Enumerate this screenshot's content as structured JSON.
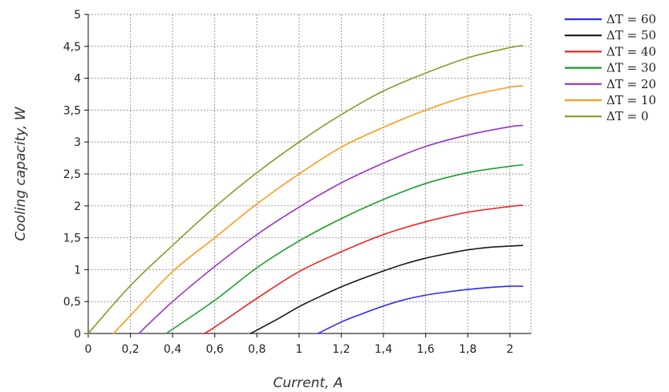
{
  "chart_data": {
    "type": "line",
    "xlabel": "Current, A",
    "ylabel": "Cooling capacity, W",
    "xlim": [
      0,
      2.1
    ],
    "ylim": [
      0,
      5
    ],
    "grid": true,
    "legend_position": "right",
    "x_ticks": [
      "0",
      "0,2",
      "0,4",
      "0,6",
      "0,8",
      "1",
      "1,2",
      "1,4",
      "1,6",
      "1,8",
      "2"
    ],
    "y_ticks": [
      "0",
      "0,5",
      "1",
      "1,5",
      "2",
      "2,5",
      "3",
      "3,5",
      "4",
      "4,5",
      "5"
    ],
    "series": [
      {
        "name": "ΔT = 60",
        "color": "#2b2bff",
        "x": [
          1.09,
          1.2,
          1.3,
          1.4,
          1.5,
          1.6,
          1.7,
          1.8,
          1.9,
          2.0,
          2.06
        ],
        "y": [
          0.0,
          0.18,
          0.31,
          0.43,
          0.53,
          0.6,
          0.65,
          0.69,
          0.72,
          0.74,
          0.74
        ]
      },
      {
        "name": "ΔT = 50",
        "color": "#1a1a1a",
        "x": [
          0.77,
          0.9,
          1.0,
          1.1,
          1.2,
          1.3,
          1.4,
          1.5,
          1.6,
          1.7,
          1.8,
          1.9,
          2.0,
          2.06
        ],
        "y": [
          0.0,
          0.23,
          0.42,
          0.58,
          0.73,
          0.86,
          0.98,
          1.09,
          1.18,
          1.25,
          1.31,
          1.35,
          1.37,
          1.38
        ]
      },
      {
        "name": "ΔT = 40",
        "color": "#ee2222",
        "x": [
          0.55,
          0.6,
          0.8,
          1.0,
          1.2,
          1.4,
          1.6,
          1.8,
          2.0,
          2.06
        ],
        "y": [
          0.0,
          0.1,
          0.55,
          0.97,
          1.28,
          1.55,
          1.75,
          1.9,
          1.99,
          2.01
        ]
      },
      {
        "name": "ΔT = 30",
        "color": "#1e9e2e",
        "x": [
          0.37,
          0.6,
          0.8,
          1.0,
          1.2,
          1.4,
          1.6,
          1.8,
          2.0,
          2.06
        ],
        "y": [
          0.0,
          0.52,
          1.03,
          1.45,
          1.8,
          2.1,
          2.35,
          2.52,
          2.62,
          2.64
        ]
      },
      {
        "name": "ΔT = 20",
        "color": "#9c33c8",
        "x": [
          0.24,
          0.4,
          0.6,
          0.8,
          1.0,
          1.2,
          1.4,
          1.6,
          1.8,
          2.0,
          2.06
        ],
        "y": [
          0.0,
          0.5,
          1.05,
          1.55,
          1.98,
          2.36,
          2.67,
          2.93,
          3.11,
          3.24,
          3.26
        ]
      },
      {
        "name": "ΔT = 10",
        "color": "#ff9a1a",
        "x": [
          0.12,
          0.2,
          0.4,
          0.6,
          0.8,
          1.0,
          1.2,
          1.4,
          1.6,
          1.8,
          2.0,
          2.06
        ],
        "y": [
          0.0,
          0.28,
          0.97,
          1.5,
          2.03,
          2.5,
          2.92,
          3.23,
          3.5,
          3.72,
          3.86,
          3.88
        ]
      },
      {
        "name": "ΔT = 0",
        "color": "#8c9a2a",
        "x": [
          0.0,
          0.2,
          0.4,
          0.6,
          0.8,
          1.0,
          1.2,
          1.4,
          1.6,
          1.8,
          2.0,
          2.06
        ],
        "y": [
          0.0,
          0.75,
          1.38,
          1.98,
          2.52,
          3.0,
          3.43,
          3.8,
          4.08,
          4.32,
          4.48,
          4.51
        ]
      }
    ]
  }
}
